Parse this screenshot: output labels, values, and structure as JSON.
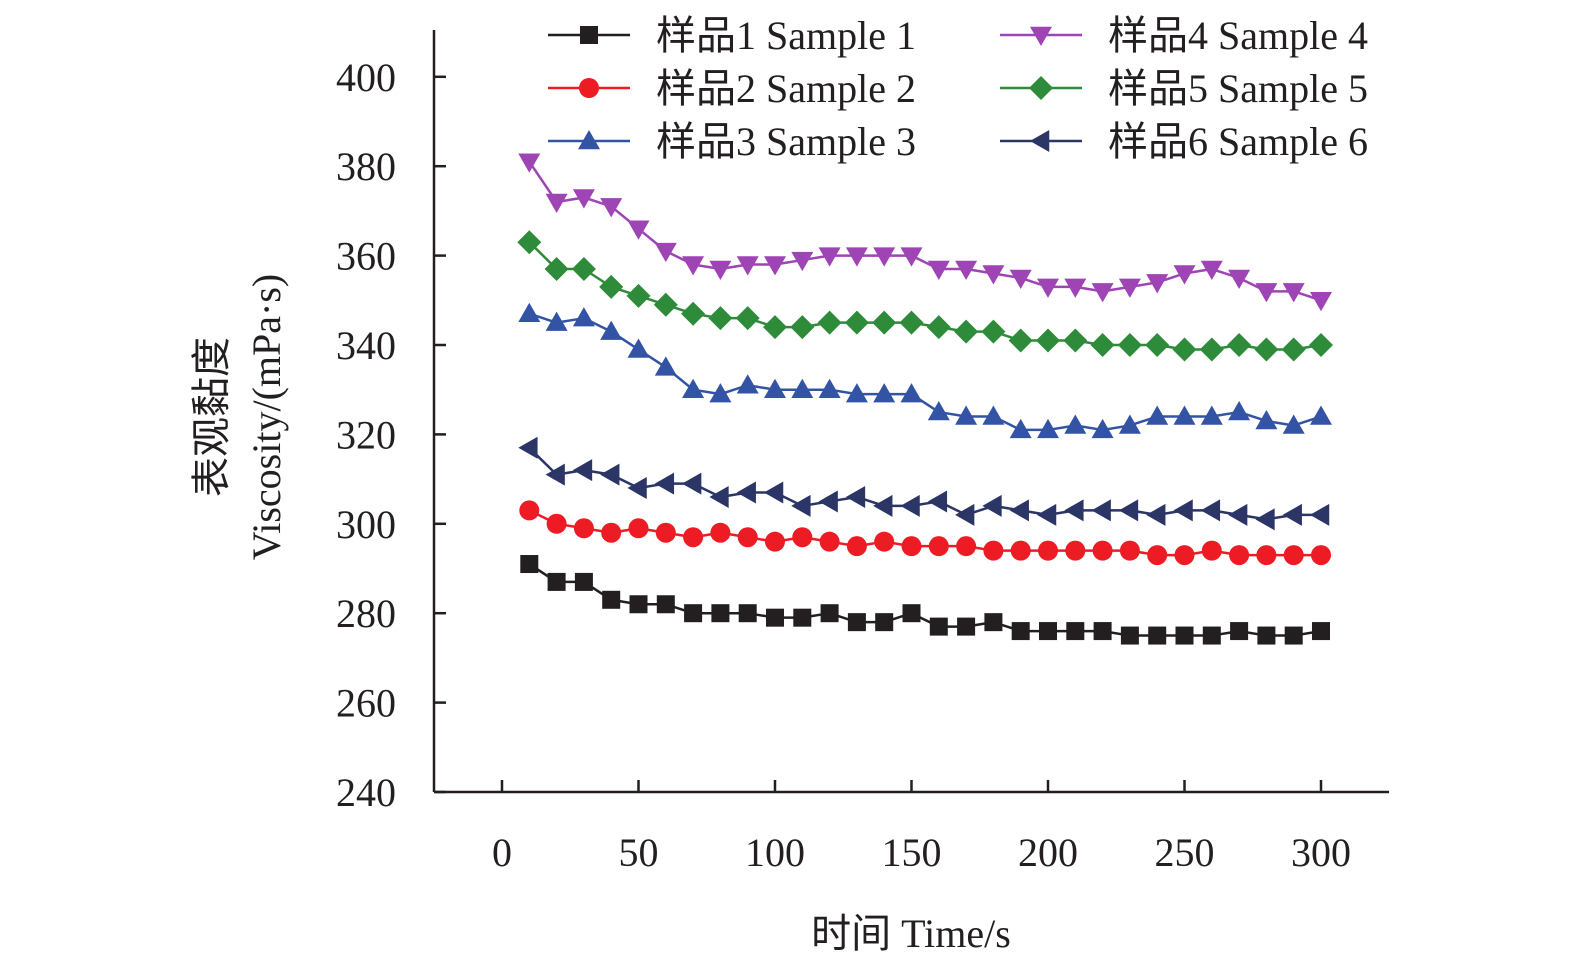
{
  "chart_data": {
    "type": "line",
    "title": "",
    "xlabel": "时间 Time/s",
    "ylabel_cn": "表观黏度",
    "ylabel_en": "Viscosity/(mPa·s)",
    "xlim": [
      -25,
      325
    ],
    "ylim": [
      240,
      410
    ],
    "xticks": [
      0,
      50,
      100,
      150,
      200,
      250,
      300
    ],
    "xtick_labels": [
      "0",
      "50",
      "100",
      "150",
      "200",
      "250",
      "300"
    ],
    "yticks": [
      240,
      260,
      280,
      300,
      320,
      340,
      360,
      380,
      400
    ],
    "ytick_labels": [
      "240",
      "260",
      "280",
      "300",
      "320",
      "340",
      "360",
      "380",
      "400"
    ],
    "grid": false,
    "legend_position": "top-right",
    "x": [
      10,
      20,
      30,
      40,
      50,
      60,
      70,
      80,
      90,
      100,
      110,
      120,
      130,
      140,
      150,
      160,
      170,
      180,
      190,
      200,
      210,
      220,
      230,
      240,
      250,
      260,
      270,
      280,
      290,
      300
    ],
    "series": [
      {
        "name": "样品1 Sample 1",
        "color": "#231f20",
        "marker": "square",
        "values": [
          291,
          287,
          287,
          283,
          282,
          282,
          280,
          280,
          280,
          279,
          279,
          280,
          278,
          278,
          280,
          277,
          277,
          278,
          276,
          276,
          276,
          276,
          275,
          275,
          275,
          275,
          276,
          275,
          275,
          276
        ]
      },
      {
        "name": "样品2 Sample 2",
        "color": "#ed1c24",
        "marker": "circle",
        "values": [
          303,
          300,
          299,
          298,
          299,
          298,
          297,
          298,
          297,
          296,
          297,
          296,
          295,
          296,
          295,
          295,
          295,
          294,
          294,
          294,
          294,
          294,
          294,
          293,
          293,
          294,
          293,
          293,
          293,
          293
        ]
      },
      {
        "name": "样品3 Sample 3",
        "color": "#3353a5",
        "marker": "triangle-up",
        "values": [
          347,
          345,
          346,
          343,
          339,
          335,
          330,
          329,
          331,
          330,
          330,
          330,
          329,
          329,
          329,
          325,
          324,
          324,
          321,
          321,
          322,
          321,
          322,
          324,
          324,
          324,
          325,
          323,
          322,
          324
        ]
      },
      {
        "name": "样品4 Sample 4",
        "color": "#9e44b4",
        "marker": "triangle-down",
        "values": [
          381,
          372,
          373,
          371,
          366,
          361,
          358,
          357,
          358,
          358,
          359,
          360,
          360,
          360,
          360,
          357,
          357,
          356,
          355,
          353,
          353,
          352,
          353,
          354,
          356,
          357,
          355,
          352,
          352,
          350
        ]
      },
      {
        "name": "样品5 Sample 5",
        "color": "#2e8b3a",
        "marker": "diamond",
        "values": [
          363,
          357,
          357,
          353,
          351,
          349,
          347,
          346,
          346,
          344,
          344,
          345,
          345,
          345,
          345,
          344,
          343,
          343,
          341,
          341,
          341,
          340,
          340,
          340,
          339,
          339,
          340,
          339,
          339,
          340
        ]
      },
      {
        "name": "样品6 Sample 6",
        "color": "#2b3566",
        "marker": "triangle-left",
        "values": [
          317,
          311,
          312,
          311,
          308,
          309,
          309,
          306,
          307,
          307,
          304,
          305,
          306,
          304,
          304,
          305,
          302,
          304,
          303,
          302,
          303,
          303,
          303,
          302,
          303,
          303,
          302,
          301,
          302,
          302
        ]
      }
    ]
  }
}
